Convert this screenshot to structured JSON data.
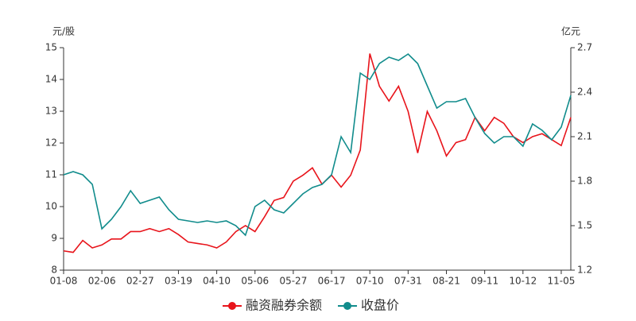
{
  "chart_data": {
    "type": "line",
    "y_label": "元/股",
    "y2_label": "亿元",
    "categories": [
      "01-08",
      null,
      null,
      null,
      "02-06",
      null,
      null,
      null,
      "02-27",
      null,
      null,
      null,
      "03-19",
      null,
      null,
      null,
      "04-10",
      null,
      null,
      null,
      "05-06",
      null,
      null,
      null,
      "05-27",
      null,
      null,
      null,
      "06-17",
      null,
      null,
      null,
      "07-10",
      null,
      null,
      null,
      "07-31",
      null,
      null,
      null,
      "08-21",
      null,
      null,
      null,
      "09-11",
      null,
      null,
      null,
      "10-12",
      null,
      null,
      null,
      "11-05",
      null
    ],
    "ylim": [
      8,
      15
    ],
    "yticks": [
      8,
      9,
      10,
      11,
      12,
      13,
      14,
      15
    ],
    "y2lim": [
      1.2,
      2.7
    ],
    "y2ticks": [
      1.2,
      1.5,
      1.8,
      2.1,
      2.4,
      2.7
    ],
    "series": [
      {
        "name": "融资融券余额",
        "color": "#e8141b",
        "axis": "y2",
        "values": [
          1.33,
          1.32,
          1.4,
          1.35,
          1.37,
          1.41,
          1.41,
          1.46,
          1.46,
          1.48,
          1.46,
          1.48,
          1.44,
          1.39,
          1.38,
          1.37,
          1.35,
          1.39,
          1.46,
          1.5,
          1.46,
          1.56,
          1.67,
          1.69,
          1.8,
          1.84,
          1.89,
          1.78,
          1.84,
          1.76,
          1.84,
          2.01,
          2.66,
          2.44,
          2.34,
          2.44,
          2.27,
          1.99,
          2.27,
          2.14,
          1.97,
          2.06,
          2.08,
          2.23,
          2.14,
          2.23,
          2.19,
          2.1,
          2.06,
          2.1,
          2.12,
          2.08,
          2.04,
          2.23
        ]
      },
      {
        "name": "收盘价",
        "color": "#118c8c",
        "values": [
          11.0,
          11.1,
          11.0,
          10.7,
          9.3,
          9.6,
          10.0,
          10.5,
          10.1,
          10.2,
          10.3,
          9.9,
          9.6,
          9.55,
          9.5,
          9.55,
          9.5,
          9.55,
          9.4,
          9.1,
          10.0,
          10.2,
          9.9,
          9.8,
          10.1,
          10.4,
          10.6,
          10.7,
          11.0,
          12.2,
          11.7,
          14.2,
          14.0,
          14.5,
          14.7,
          14.6,
          14.8,
          14.5,
          13.8,
          13.1,
          13.3,
          13.3,
          13.4,
          12.8,
          12.3,
          12.0,
          12.2,
          12.2,
          11.9,
          12.6,
          12.4,
          12.1,
          12.5,
          13.5
        ]
      }
    ],
    "legend": "bottom"
  }
}
